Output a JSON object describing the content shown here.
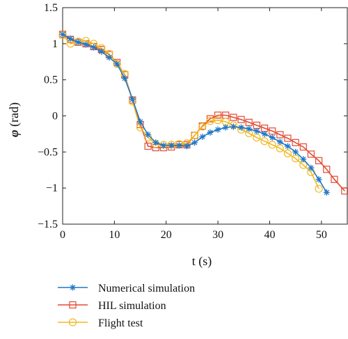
{
  "chart_data": {
    "type": "line",
    "xlabel": "t (s)",
    "ylabel_symbol": "φ",
    "ylabel_unit": " (rad)",
    "xlim": [
      0,
      55
    ],
    "ylim": [
      -1.5,
      1.5
    ],
    "xticks": [
      0,
      10,
      20,
      30,
      40,
      50
    ],
    "yticks": [
      1.5,
      1,
      0.5,
      0,
      -0.5,
      -1,
      -1.5
    ],
    "ytick_labels": [
      "1.5",
      "1",
      "0.5",
      "0",
      "−0.5",
      "−1",
      "−1.5"
    ],
    "grid": false,
    "legend_position": "below",
    "series": [
      {
        "name": "Numerical simulation",
        "color": "#1f77c8",
        "marker": "star",
        "points": [
          [
            0,
            1.13
          ],
          [
            1.5,
            1.07
          ],
          [
            3,
            1.02
          ],
          [
            4.5,
            0.99
          ],
          [
            6,
            0.95
          ],
          [
            7.5,
            0.89
          ],
          [
            9,
            0.81
          ],
          [
            10.5,
            0.72
          ],
          [
            12,
            0.52
          ],
          [
            13.5,
            0.23
          ],
          [
            15,
            -0.08
          ],
          [
            16.5,
            -0.26
          ],
          [
            18,
            -0.37
          ],
          [
            19.5,
            -0.41
          ],
          [
            21,
            -0.41
          ],
          [
            22.5,
            -0.41
          ],
          [
            24,
            -0.42
          ],
          [
            25.5,
            -0.37
          ],
          [
            27,
            -0.29
          ],
          [
            28.5,
            -0.23
          ],
          [
            30,
            -0.19
          ],
          [
            31.5,
            -0.16
          ],
          [
            33,
            -0.15
          ],
          [
            34.5,
            -0.16
          ],
          [
            36,
            -0.18
          ],
          [
            37.5,
            -0.21
          ],
          [
            39,
            -0.25
          ],
          [
            40.5,
            -0.3
          ],
          [
            42,
            -0.36
          ],
          [
            43.5,
            -0.42
          ],
          [
            45,
            -0.5
          ],
          [
            46.5,
            -0.6
          ],
          [
            48,
            -0.72
          ],
          [
            49.5,
            -0.88
          ],
          [
            51,
            -1.06
          ]
        ]
      },
      {
        "name": "HIL simulation",
        "color": "#e24a33",
        "marker": "square",
        "points": [
          [
            0,
            1.13
          ],
          [
            1.5,
            1.06
          ],
          [
            3,
            1.02
          ],
          [
            4.5,
            1.0
          ],
          [
            6,
            0.96
          ],
          [
            7.5,
            0.92
          ],
          [
            9,
            0.85
          ],
          [
            10.5,
            0.74
          ],
          [
            12,
            0.57
          ],
          [
            13.5,
            0.22
          ],
          [
            15,
            -0.12
          ],
          [
            16.5,
            -0.42
          ],
          [
            18,
            -0.44
          ],
          [
            19.5,
            -0.44
          ],
          [
            21,
            -0.43
          ],
          [
            22.5,
            -0.4
          ],
          [
            24,
            -0.4
          ],
          [
            25.5,
            -0.27
          ],
          [
            27,
            -0.14
          ],
          [
            28.5,
            -0.04
          ],
          [
            30,
            0.01
          ],
          [
            31.5,
            0.01
          ],
          [
            33,
            -0.02
          ],
          [
            34.5,
            -0.05
          ],
          [
            36,
            -0.09
          ],
          [
            37.5,
            -0.13
          ],
          [
            39,
            -0.17
          ],
          [
            40.5,
            -0.21
          ],
          [
            42,
            -0.26
          ],
          [
            43.5,
            -0.31
          ],
          [
            45,
            -0.37
          ],
          [
            46.5,
            -0.43
          ],
          [
            48,
            -0.53
          ],
          [
            49.5,
            -0.62
          ],
          [
            51,
            -0.74
          ],
          [
            52.5,
            -0.88
          ],
          [
            54.5,
            -1.04
          ]
        ]
      },
      {
        "name": "Flight test",
        "color": "#f2b81d",
        "marker": "circle",
        "points": [
          [
            0,
            1.12
          ],
          [
            1.5,
            1.0
          ],
          [
            3,
            1.03
          ],
          [
            4.5,
            1.04
          ],
          [
            6,
            1.0
          ],
          [
            7.5,
            0.94
          ],
          [
            9,
            0.86
          ],
          [
            10.5,
            0.72
          ],
          [
            12,
            0.58
          ],
          [
            13.5,
            0.2
          ],
          [
            15,
            -0.16
          ],
          [
            16.5,
            -0.3
          ],
          [
            18,
            -0.39
          ],
          [
            19.5,
            -0.4
          ],
          [
            21,
            -0.4
          ],
          [
            22.5,
            -0.39
          ],
          [
            24,
            -0.38
          ],
          [
            25.5,
            -0.27
          ],
          [
            27,
            -0.15
          ],
          [
            28.5,
            -0.07
          ],
          [
            30,
            -0.06
          ],
          [
            31.5,
            -0.08
          ],
          [
            33,
            -0.13
          ],
          [
            34.5,
            -0.19
          ],
          [
            36,
            -0.24
          ],
          [
            37.5,
            -0.3
          ],
          [
            39,
            -0.35
          ],
          [
            40.5,
            -0.4
          ],
          [
            42,
            -0.45
          ],
          [
            43.5,
            -0.52
          ],
          [
            45,
            -0.59
          ],
          [
            46.5,
            -0.68
          ],
          [
            48,
            -0.78
          ],
          [
            49.5,
            -1.01
          ]
        ]
      }
    ]
  }
}
